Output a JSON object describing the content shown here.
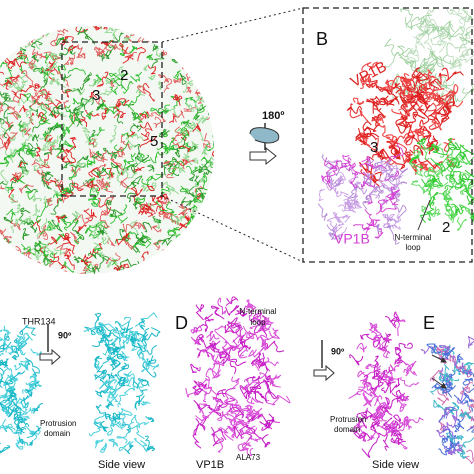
{
  "panel_a": {
    "labels": [
      "3",
      "2",
      "5"
    ]
  },
  "rotation_ab": "180º",
  "panel_b": {
    "letter": "B",
    "vp1b_red": "VP1B",
    "vp1b_pink": "VP1B",
    "labels": [
      "3",
      "2"
    ],
    "n_terminal_loop": [
      "N-terminal",
      "loop"
    ]
  },
  "panel_c": {
    "residue": "THR134",
    "rotation": "90º",
    "protrusion_domain": [
      "Protrusion",
      "domain"
    ],
    "side_view": "Side view"
  },
  "panel_d": {
    "letter": "D",
    "n_terminal_loop": [
      "N-terminal",
      "loop"
    ],
    "chain": "VP1B",
    "residue": "ALA73",
    "rotation": "90º",
    "protrusion_domain": [
      "Protrusion",
      "domain"
    ],
    "side_view": "Side view"
  },
  "panel_e": {
    "letter": "E"
  }
}
